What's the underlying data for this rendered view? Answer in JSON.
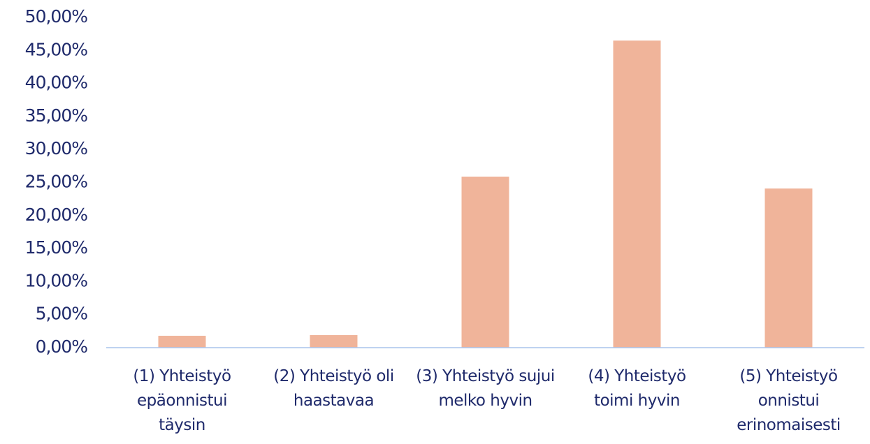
{
  "chart_data": {
    "type": "bar",
    "categories": [
      "(1) Yhteistyö epäonnistui täysin",
      "(2) Yhteistyö oli haastavaa",
      "(3) Yhteistyö sujui melko hyvin",
      "(4) Yhteistyö toimi hyvin",
      "(5) Yhteistyö onnistui erinomaisesti"
    ],
    "values": [
      1.8,
      1.9,
      25.9,
      46.5,
      24.1
    ],
    "color": "#f0b49a",
    "ylim": [
      0,
      50
    ],
    "yticks": [
      {
        "value": 0,
        "label": "0,00%"
      },
      {
        "value": 5,
        "label": "5,00%"
      },
      {
        "value": 10,
        "label": "10,00%"
      },
      {
        "value": 15,
        "label": "15,00%"
      },
      {
        "value": 20,
        "label": "20,00%"
      },
      {
        "value": 25,
        "label": "25,00%"
      },
      {
        "value": 30,
        "label": "30,00%"
      },
      {
        "value": 35,
        "label": "35,00%"
      },
      {
        "value": 40,
        "label": "40,00%"
      },
      {
        "value": 45,
        "label": "45,00%"
      },
      {
        "value": 50,
        "label": "50,00%"
      }
    ],
    "grid": false
  }
}
